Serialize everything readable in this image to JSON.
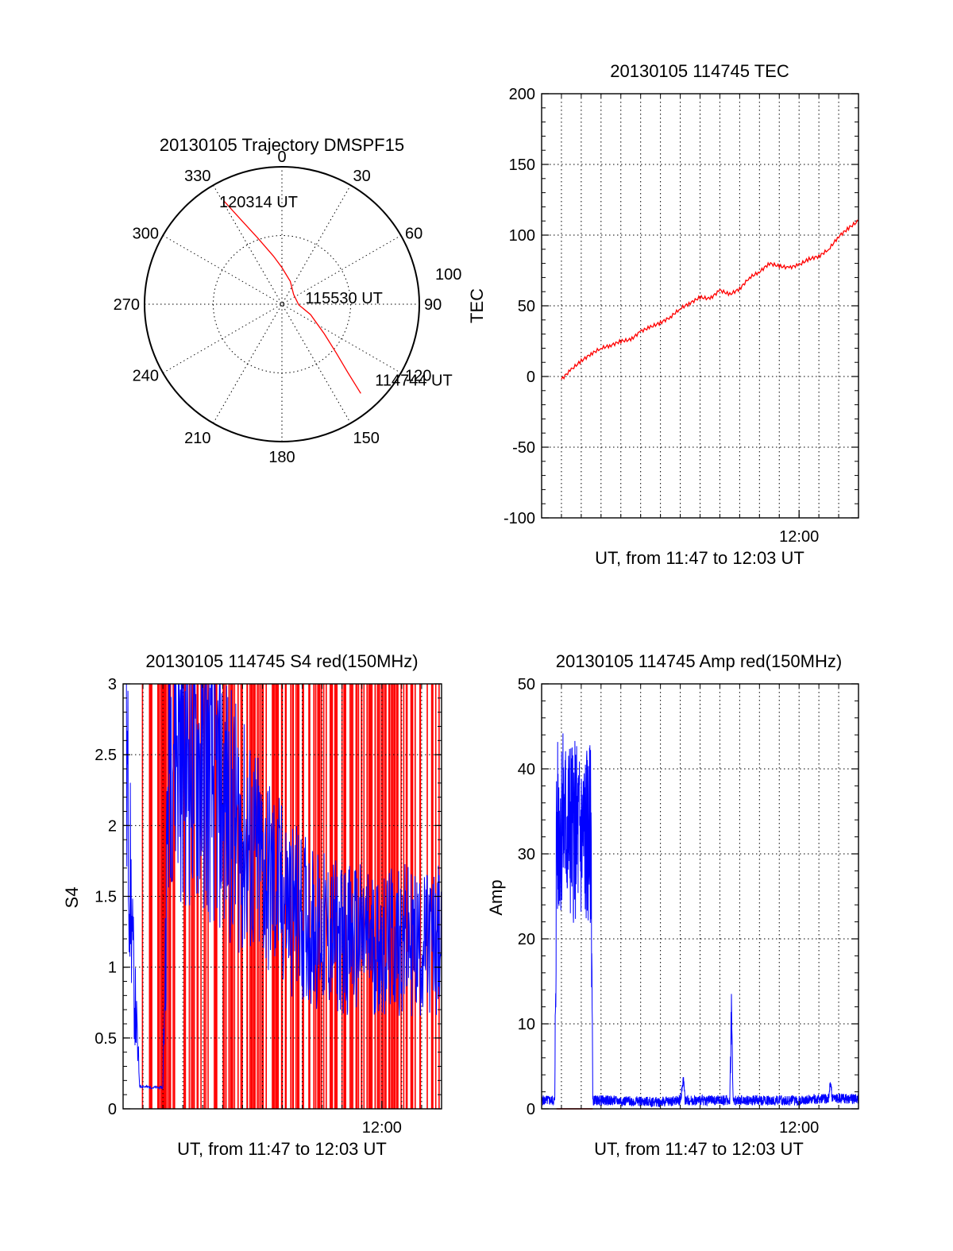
{
  "chart_data": [
    {
      "type": "polar",
      "title": "20130105 Trajectory DMSPF15",
      "angle_labels": [
        "0",
        "30",
        "60",
        "90",
        "120",
        "150",
        "180",
        "210",
        "240",
        "270",
        "300",
        "330"
      ],
      "radius_label": "100",
      "grid": true,
      "series": [
        {
          "color": "#ff0000",
          "points": [
            {
              "az": 330.6,
              "el": 12
            },
            {
              "az": 334,
              "el": 28
            },
            {
              "az": 340,
              "el": 44
            },
            {
              "az": 350,
              "el": 58
            },
            {
              "az": 0,
              "el": 66
            },
            {
              "az": 20,
              "el": 74
            },
            {
              "az": 50,
              "el": 80
            },
            {
              "az": 92,
              "el": 79
            },
            {
              "az": 110,
              "el": 70
            },
            {
              "az": 125,
              "el": 56
            },
            {
              "az": 132,
              "el": 42
            },
            {
              "az": 136,
              "el": 28
            },
            {
              "az": 138.5,
              "el": 12
            }
          ]
        }
      ],
      "annotations": [
        {
          "text": "120314 UT",
          "az": 330,
          "el": 12
        },
        {
          "text": "115530 UT",
          "az": 75,
          "el": 72
        },
        {
          "text": "114744 UT",
          "az": 128,
          "el": 10
        }
      ]
    },
    {
      "type": "line",
      "title": "20130105 114745 TEC",
      "xlabel": "UT, from 11:47 to 12:03 UT",
      "ylabel": "TEC",
      "xlim": [
        "11:47",
        "12:03"
      ],
      "ylim": [
        -100,
        200
      ],
      "yticks": [
        -100,
        -50,
        0,
        50,
        100,
        150,
        200
      ],
      "xticks": [
        {
          "label": "12:00",
          "t": "12:00"
        }
      ],
      "grid": true,
      "series": [
        {
          "color": "#ff0000",
          "points": [
            [
              "11:48:00",
              -2
            ],
            [
              "11:48:30",
              5
            ],
            [
              "11:49:00",
              11
            ],
            [
              "11:49:30",
              16
            ],
            [
              "11:50:00",
              20
            ],
            [
              "11:50:30",
              22
            ],
            [
              "11:51:00",
              25
            ],
            [
              "11:51:30",
              26
            ],
            [
              "11:52:00",
              32
            ],
            [
              "11:52:30",
              35
            ],
            [
              "11:53:00",
              38
            ],
            [
              "11:53:30",
              42
            ],
            [
              "11:54:00",
              48
            ],
            [
              "11:54:30",
              52
            ],
            [
              "11:55:00",
              56
            ],
            [
              "11:55:30",
              55
            ],
            [
              "11:56:00",
              61
            ],
            [
              "11:56:30",
              58
            ],
            [
              "11:57:00",
              62
            ],
            [
              "11:57:30",
              70
            ],
            [
              "11:58:00",
              74
            ],
            [
              "11:58:30",
              80
            ],
            [
              "11:59:00",
              78
            ],
            [
              "11:59:30",
              77
            ],
            [
              "12:00:00",
              79
            ],
            [
              "12:00:30",
              83
            ],
            [
              "12:01:00",
              85
            ],
            [
              "12:01:30",
              90
            ],
            [
              "12:02:00",
              99
            ],
            [
              "12:02:30",
              105
            ],
            [
              "12:03:00",
              110
            ]
          ]
        }
      ]
    },
    {
      "type": "line",
      "title": "20130105 114745 S4 red(150MHz)",
      "xlabel": "UT, from 11:47 to 12:03 UT",
      "ylabel": "S4",
      "xlim": [
        "11:47",
        "12:03"
      ],
      "ylim": [
        0,
        3
      ],
      "yticks": [
        "0",
        "0.5",
        "1",
        "1.5",
        "2",
        "2.5",
        "3"
      ],
      "xticks": [
        {
          "label": "12:00",
          "t": "12:00"
        }
      ],
      "grid": true,
      "series": [
        {
          "name": "",
          "color": "#ff0000",
          "style": "vertical lines spanning 0 to 3 (dense, dropouts)"
        },
        {
          "name": "",
          "color": "#0000ff",
          "points": [
            [
              "11:47:10",
              2.5
            ],
            [
              "11:47:30",
              1.0
            ],
            [
              "11:47:50",
              0.16
            ],
            [
              "11:48:30",
              0.15
            ],
            [
              "11:49:00",
              0.15
            ],
            [
              "11:49:20",
              2.8
            ],
            [
              "11:50:00",
              2.6
            ],
            [
              "11:51:00",
              2.4
            ],
            [
              "11:52:00",
              2.2
            ],
            [
              "11:53:00",
              1.9
            ],
            [
              "11:54:00",
              1.7
            ],
            [
              "11:55:00",
              1.5
            ],
            [
              "11:56:00",
              1.35
            ],
            [
              "11:57:00",
              1.25
            ],
            [
              "11:58:00",
              1.2
            ],
            [
              "11:59:00",
              1.2
            ],
            [
              "12:00:00",
              1.15
            ],
            [
              "12:01:00",
              1.2
            ],
            [
              "12:02:00",
              1.15
            ],
            [
              "12:03:00",
              1.2
            ]
          ]
        }
      ]
    },
    {
      "type": "line",
      "title": "20130105 114745 Amp red(150MHz)",
      "xlabel": "UT, from 11:47 to 12:03 UT",
      "ylabel": "Amp",
      "xlim": [
        "11:47",
        "12:03"
      ],
      "ylim": [
        0,
        50
      ],
      "yticks": [
        0,
        10,
        20,
        30,
        40,
        50
      ],
      "xticks": [
        {
          "label": "12:00",
          "t": "12:00"
        }
      ],
      "grid": true,
      "series": [
        {
          "name": "",
          "color": "#0000ff",
          "points": [
            [
              "11:47:00",
              1.0
            ],
            [
              "11:47:40",
              1.0
            ],
            [
              "11:47:45",
              32
            ],
            [
              "11:48:00",
              34
            ],
            [
              "11:48:30",
              33
            ],
            [
              "11:49:00",
              32
            ],
            [
              "11:49:30",
              32
            ],
            [
              "11:49:35",
              1.0
            ],
            [
              "11:50:00",
              1.0
            ],
            [
              "11:53:00",
              0.8
            ],
            [
              "11:54:00",
              1.0
            ],
            [
              "11:54:10",
              3.5
            ],
            [
              "11:54:15",
              1.0
            ],
            [
              "11:56:30",
              1.0
            ],
            [
              "11:56:35",
              12
            ],
            [
              "11:56:40",
              1.0
            ],
            [
              "11:58:00",
              1.0
            ],
            [
              "12:00:00",
              1.0
            ],
            [
              "12:01:30",
              1.2
            ],
            [
              "12:01:35",
              3.5
            ],
            [
              "12:01:40",
              1.2
            ],
            [
              "12:03:00",
              1.2
            ]
          ]
        },
        {
          "name": "",
          "color": "#ff0000",
          "points": [
            [
              "11:47:45",
              0
            ],
            [
              "11:49:35",
              0
            ]
          ]
        }
      ]
    }
  ]
}
